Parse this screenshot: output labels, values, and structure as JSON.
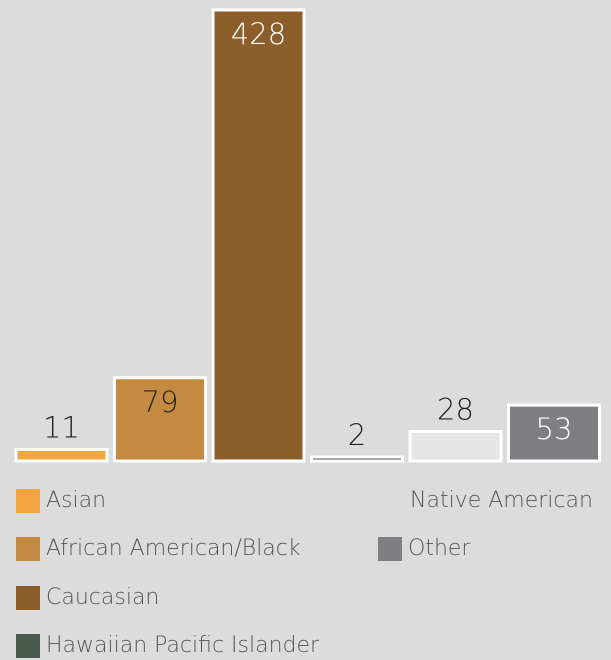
{
  "chart_data": {
    "type": "bar",
    "categories": [
      "Asian",
      "African American/Black",
      "Caucasian",
      "Hawaiian Pacific Islander",
      "Native American",
      "Other"
    ],
    "values": [
      11,
      79,
      428,
      2,
      28,
      53
    ],
    "colors": [
      "#f2a541",
      "#c58a41",
      "#8b5e2b",
      "#4a5a4b",
      "#e6e6e6",
      "#7f7f83"
    ],
    "label_colors": [
      "#222222",
      "#222222",
      "#ffffff",
      "#222222",
      "#222222",
      "#ffffff"
    ],
    "title": "",
    "xlabel": "",
    "ylabel": "",
    "ylim": [
      0,
      428
    ],
    "grid": false,
    "legend_position": "bottom"
  },
  "legend": [
    {
      "label": "Asian",
      "color": "#f2a541",
      "show_swatch": true
    },
    {
      "label": "African American/Black",
      "color": "#c58a41",
      "show_swatch": true
    },
    {
      "label": "Caucasian",
      "color": "#8b5e2b",
      "show_swatch": true
    },
    {
      "label": "Hawaiian Pacific Islander",
      "color": "#4a5a4b",
      "show_swatch": true
    },
    {
      "label": "Native American",
      "color": "#e6e6e6",
      "show_swatch": false
    },
    {
      "label": "Other",
      "color": "#7f7f83",
      "show_swatch": true
    }
  ]
}
